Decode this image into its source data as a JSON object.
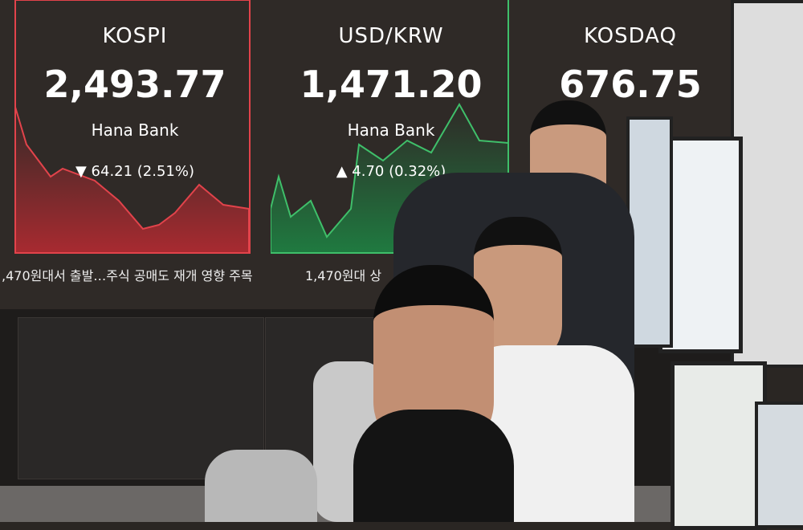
{
  "panels": [
    {
      "name": "KOSPI",
      "value": "2,493.77",
      "bank": "Hana Bank",
      "change": "▼ 64.21 (2.51%)",
      "color": "#e2434b"
    },
    {
      "name": "USD/KRW",
      "value": "1,471.20",
      "bank": "Hana Bank",
      "change": "▲ 4.70 (0.32%)",
      "color": "#3fbf6a"
    },
    {
      "name": "KOSDAQ",
      "value": "676.75",
      "color": "#e2434b"
    }
  ],
  "ticker": {
    "left": ",470원대서 출발…주식 공매도 재개 영향 주목",
    "right": "1,470원대 상"
  }
}
